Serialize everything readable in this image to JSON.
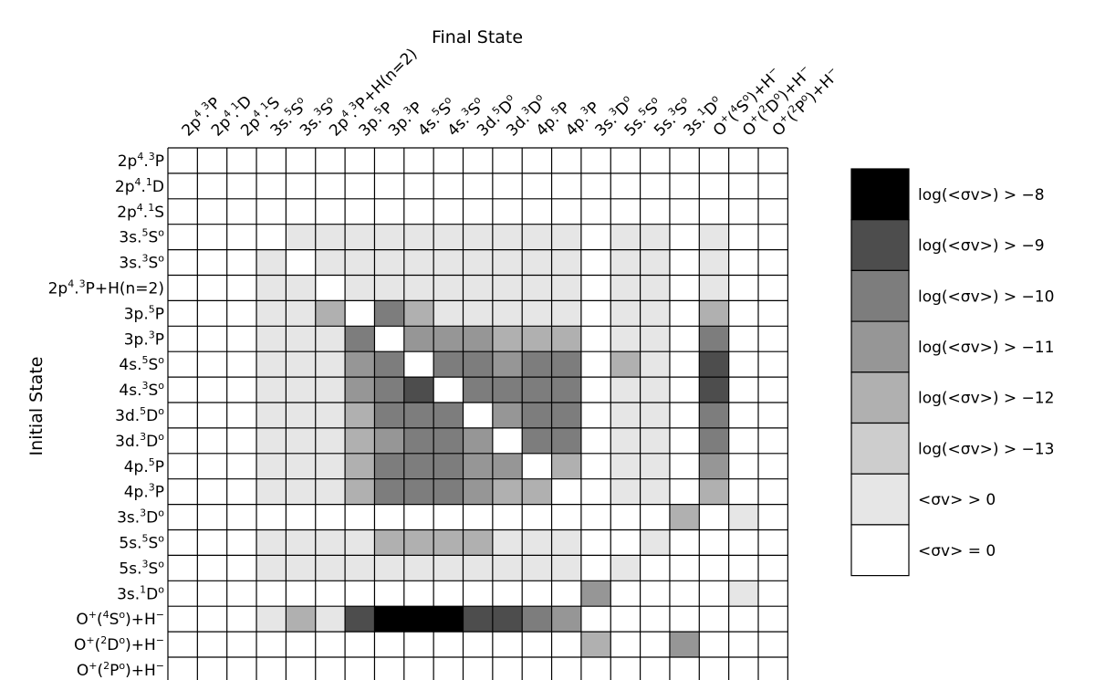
{
  "chart_data": {
    "type": "heatmap",
    "xlabel": "Final State",
    "ylabel": "Initial State",
    "columns": [
      [
        "2p",
        {
          "sup": "4"
        },
        ".",
        {
          "sup": "3"
        },
        "P"
      ],
      [
        "2p",
        {
          "sup": "4"
        },
        ".",
        {
          "sup": "1"
        },
        "D"
      ],
      [
        "2p",
        {
          "sup": "4"
        },
        ".",
        {
          "sup": "1"
        },
        "S"
      ],
      [
        "3s.",
        {
          "sup": "5"
        },
        "S",
        {
          "sup": "o"
        }
      ],
      [
        "3s.",
        {
          "sup": "3"
        },
        "S",
        {
          "sup": "o"
        }
      ],
      [
        "2p",
        {
          "sup": "4"
        },
        ".",
        {
          "sup": "3"
        },
        "P+H(n=2)"
      ],
      [
        "3p.",
        {
          "sup": "5"
        },
        "P"
      ],
      [
        "3p.",
        {
          "sup": "3"
        },
        "P"
      ],
      [
        "4s.",
        {
          "sup": "5"
        },
        "S",
        {
          "sup": "o"
        }
      ],
      [
        "4s.",
        {
          "sup": "3"
        },
        "S",
        {
          "sup": "o"
        }
      ],
      [
        "3d.",
        {
          "sup": "5"
        },
        "D",
        {
          "sup": "o"
        }
      ],
      [
        "3d.",
        {
          "sup": "3"
        },
        "D",
        {
          "sup": "o"
        }
      ],
      [
        "4p.",
        {
          "sup": "5"
        },
        "P"
      ],
      [
        "4p.",
        {
          "sup": "3"
        },
        "P"
      ],
      [
        "3s.",
        {
          "sup": "3"
        },
        "D",
        {
          "sup": "o"
        }
      ],
      [
        "5s.",
        {
          "sup": "5"
        },
        "S",
        {
          "sup": "o"
        }
      ],
      [
        "5s.",
        {
          "sup": "3"
        },
        "S",
        {
          "sup": "o"
        }
      ],
      [
        "3s.",
        {
          "sup": "1"
        },
        "D",
        {
          "sup": "o"
        }
      ],
      [
        "O",
        {
          "sup": "+"
        },
        "(",
        {
          "sup": "4"
        },
        "S",
        {
          "sup": "o"
        },
        ")+H",
        {
          "sup": "−"
        }
      ],
      [
        "O",
        {
          "sup": "+"
        },
        "(",
        {
          "sup": "2"
        },
        "D",
        {
          "sup": "o"
        },
        ")+H",
        {
          "sup": "−"
        }
      ],
      [
        "O",
        {
          "sup": "+"
        },
        "(",
        {
          "sup": "2"
        },
        "P",
        {
          "sup": "o"
        },
        ")+H",
        {
          "sup": "−"
        }
      ]
    ],
    "rows": [
      [
        "2p",
        {
          "sup": "4"
        },
        ".",
        {
          "sup": "3"
        },
        "P"
      ],
      [
        "2p",
        {
          "sup": "4"
        },
        ".",
        {
          "sup": "1"
        },
        "D"
      ],
      [
        "2p",
        {
          "sup": "4"
        },
        ".",
        {
          "sup": "1"
        },
        "S"
      ],
      [
        "3s.",
        {
          "sup": "5"
        },
        "S",
        {
          "sup": "o"
        }
      ],
      [
        "3s.",
        {
          "sup": "3"
        },
        "S",
        {
          "sup": "o"
        }
      ],
      [
        "2p",
        {
          "sup": "4"
        },
        ".",
        {
          "sup": "3"
        },
        "P+H(n=2)"
      ],
      [
        "3p.",
        {
          "sup": "5"
        },
        "P"
      ],
      [
        "3p.",
        {
          "sup": "3"
        },
        "P"
      ],
      [
        "4s.",
        {
          "sup": "5"
        },
        "S",
        {
          "sup": "o"
        }
      ],
      [
        "4s.",
        {
          "sup": "3"
        },
        "S",
        {
          "sup": "o"
        }
      ],
      [
        "3d.",
        {
          "sup": "5"
        },
        "D",
        {
          "sup": "o"
        }
      ],
      [
        "3d.",
        {
          "sup": "3"
        },
        "D",
        {
          "sup": "o"
        }
      ],
      [
        "4p.",
        {
          "sup": "5"
        },
        "P"
      ],
      [
        "4p.",
        {
          "sup": "3"
        },
        "P"
      ],
      [
        "3s.",
        {
          "sup": "3"
        },
        "D",
        {
          "sup": "o"
        }
      ],
      [
        "5s.",
        {
          "sup": "5"
        },
        "S",
        {
          "sup": "o"
        }
      ],
      [
        "5s.",
        {
          "sup": "3"
        },
        "S",
        {
          "sup": "o"
        }
      ],
      [
        "3s.",
        {
          "sup": "1"
        },
        "D",
        {
          "sup": "o"
        }
      ],
      [
        "O",
        {
          "sup": "+"
        },
        "(",
        {
          "sup": "4"
        },
        "S",
        {
          "sup": "o"
        },
        ")+H",
        {
          "sup": "−"
        }
      ],
      [
        "O",
        {
          "sup": "+"
        },
        "(",
        {
          "sup": "2"
        },
        "D",
        {
          "sup": "o"
        },
        ")+H",
        {
          "sup": "−"
        }
      ],
      [
        "O",
        {
          "sup": "+"
        },
        "(",
        {
          "sup": "2"
        },
        "P",
        {
          "sup": "o"
        },
        ")+H",
        {
          "sup": "−"
        }
      ]
    ],
    "levels": [
      {
        "level": 0,
        "label": "<σv> = 0",
        "color": "#ffffff"
      },
      {
        "level": 1,
        "label": "<σv> > 0",
        "color": "#e6e6e6"
      },
      {
        "level": 2,
        "label": "log(<σv>) > −13",
        "color": "#cdcdcd"
      },
      {
        "level": 3,
        "label": "log(<σv>) > −12",
        "color": "#b0b0b0"
      },
      {
        "level": 4,
        "label": "log(<σv>) > −11",
        "color": "#969696"
      },
      {
        "level": 5,
        "label": "log(<σv>) > −10",
        "color": "#7d7d7d"
      },
      {
        "level": 6,
        "label": "log(<σv>) >  −9",
        "color": "#4d4d4d"
      },
      {
        "level": 7,
        "label": "log(<σv>) >  −8",
        "color": "#000000"
      }
    ],
    "legend_order": "top-to-bottom from darkest",
    "legend_position": "right",
    "grid": true,
    "matrix": [
      [
        0,
        0,
        0,
        0,
        0,
        0,
        0,
        0,
        0,
        0,
        0,
        0,
        0,
        0,
        0,
        0,
        0,
        0,
        0,
        0,
        0
      ],
      [
        0,
        0,
        0,
        0,
        0,
        0,
        0,
        0,
        0,
        0,
        0,
        0,
        0,
        0,
        0,
        0,
        0,
        0,
        0,
        0,
        0
      ],
      [
        0,
        0,
        0,
        0,
        0,
        0,
        0,
        0,
        0,
        0,
        0,
        0,
        0,
        0,
        0,
        0,
        0,
        0,
        0,
        0,
        0
      ],
      [
        0,
        0,
        0,
        0,
        1,
        1,
        1,
        1,
        1,
        1,
        1,
        1,
        1,
        1,
        0,
        1,
        1,
        0,
        1,
        0,
        0
      ],
      [
        0,
        0,
        0,
        1,
        0,
        1,
        1,
        1,
        1,
        1,
        1,
        1,
        1,
        1,
        0,
        1,
        1,
        0,
        1,
        0,
        0
      ],
      [
        0,
        0,
        0,
        1,
        1,
        0,
        1,
        1,
        1,
        1,
        1,
        1,
        1,
        1,
        0,
        1,
        1,
        0,
        1,
        0,
        0
      ],
      [
        0,
        0,
        0,
        1,
        1,
        3,
        0,
        5,
        3,
        1,
        1,
        1,
        1,
        1,
        0,
        1,
        1,
        0,
        3,
        0,
        0
      ],
      [
        0,
        0,
        0,
        1,
        1,
        1,
        5,
        0,
        4,
        4,
        4,
        3,
        3,
        3,
        0,
        1,
        1,
        0,
        5,
        0,
        0
      ],
      [
        0,
        0,
        0,
        1,
        1,
        1,
        4,
        5,
        0,
        5,
        5,
        4,
        5,
        5,
        0,
        3,
        1,
        0,
        6,
        0,
        0
      ],
      [
        0,
        0,
        0,
        1,
        1,
        1,
        4,
        5,
        6,
        0,
        5,
        5,
        5,
        5,
        0,
        1,
        1,
        0,
        6,
        0,
        0
      ],
      [
        0,
        0,
        0,
        1,
        1,
        1,
        3,
        5,
        5,
        5,
        0,
        4,
        5,
        5,
        0,
        1,
        1,
        0,
        5,
        0,
        0
      ],
      [
        0,
        0,
        0,
        1,
        1,
        1,
        3,
        4,
        5,
        5,
        4,
        0,
        5,
        5,
        0,
        1,
        1,
        0,
        5,
        0,
        0
      ],
      [
        0,
        0,
        0,
        1,
        1,
        1,
        3,
        5,
        5,
        5,
        4,
        4,
        0,
        3,
        0,
        1,
        1,
        0,
        4,
        0,
        0
      ],
      [
        0,
        0,
        0,
        1,
        1,
        1,
        3,
        5,
        5,
        5,
        4,
        3,
        3,
        0,
        0,
        1,
        1,
        0,
        3,
        0,
        0
      ],
      [
        0,
        0,
        0,
        0,
        0,
        0,
        0,
        0,
        0,
        0,
        0,
        0,
        0,
        0,
        0,
        0,
        0,
        3,
        0,
        1,
        0
      ],
      [
        0,
        0,
        0,
        1,
        1,
        1,
        1,
        3,
        3,
        3,
        3,
        1,
        1,
        1,
        0,
        0,
        1,
        0,
        0,
        0,
        0
      ],
      [
        0,
        0,
        0,
        1,
        1,
        1,
        1,
        1,
        1,
        1,
        1,
        1,
        1,
        1,
        0,
        1,
        0,
        0,
        0,
        0,
        0
      ],
      [
        0,
        0,
        0,
        0,
        0,
        0,
        0,
        0,
        0,
        0,
        0,
        0,
        0,
        0,
        4,
        0,
        0,
        0,
        0,
        1,
        0
      ],
      [
        0,
        0,
        0,
        1,
        3,
        1,
        6,
        7,
        7,
        7,
        6,
        6,
        5,
        4,
        0,
        0,
        0,
        0,
        0,
        0,
        0
      ],
      [
        0,
        0,
        0,
        0,
        0,
        0,
        0,
        0,
        0,
        0,
        0,
        0,
        0,
        0,
        3,
        0,
        0,
        4,
        0,
        0,
        0
      ],
      [
        0,
        0,
        0,
        0,
        0,
        0,
        0,
        0,
        0,
        0,
        0,
        0,
        0,
        0,
        0,
        0,
        0,
        0,
        0,
        0,
        0
      ]
    ]
  }
}
